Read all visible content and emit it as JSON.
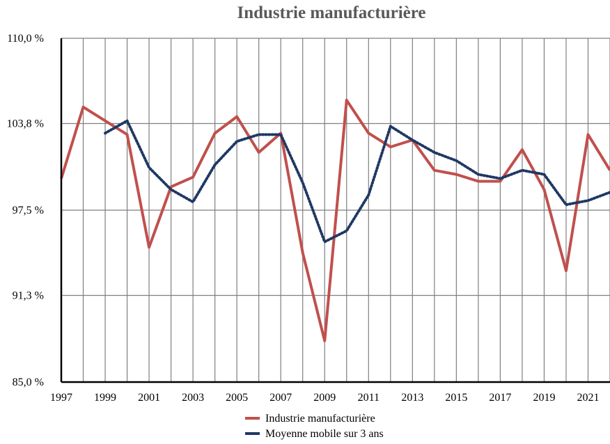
{
  "chart_data": {
    "type": "line",
    "title": "Industrie manufacturière",
    "xlabel": "",
    "ylabel": "",
    "x": [
      1997,
      1998,
      1999,
      2000,
      2001,
      2002,
      2003,
      2004,
      2005,
      2006,
      2007,
      2008,
      2009,
      2010,
      2011,
      2012,
      2013,
      2014,
      2015,
      2016,
      2017,
      2018,
      2019,
      2020,
      2021,
      2022
    ],
    "x_tick_labels": [
      "1997",
      "1999",
      "2001",
      "2003",
      "2005",
      "2007",
      "2009",
      "2011",
      "2013",
      "2015",
      "2017",
      "2019",
      "2021"
    ],
    "y_tick_labels": [
      "85,0 %",
      "91,3 %",
      "97,5 %",
      "103,8 %",
      "110,0 %"
    ],
    "ylim": [
      85.0,
      110.0
    ],
    "xlim": [
      1997,
      2022
    ],
    "grid": "vertical and horizontal",
    "legend_position": "bottom",
    "series": [
      {
        "name": "Industrie manufacturière",
        "color": "#c0504d",
        "style": "solid",
        "values": [
          99.8,
          105.0,
          104.0,
          103.0,
          94.8,
          99.2,
          99.9,
          103.1,
          104.3,
          101.7,
          103.1,
          94.4,
          88.0,
          105.5,
          103.1,
          102.1,
          102.6,
          100.4,
          100.1,
          99.6,
          99.6,
          101.9,
          99.0,
          93.1,
          103.0,
          100.4
        ]
      },
      {
        "name": "Moyenne mobile sur 3 ans",
        "color": "#1f3864",
        "style": "dotted",
        "values": [
          null,
          null,
          103.1,
          104.0,
          100.6,
          99.0,
          98.1,
          100.8,
          102.5,
          103.0,
          103.0,
          99.5,
          95.2,
          96.0,
          98.6,
          103.6,
          102.6,
          101.7,
          101.1,
          100.1,
          99.8,
          100.4,
          100.1,
          97.9,
          98.2,
          98.8
        ]
      }
    ]
  }
}
